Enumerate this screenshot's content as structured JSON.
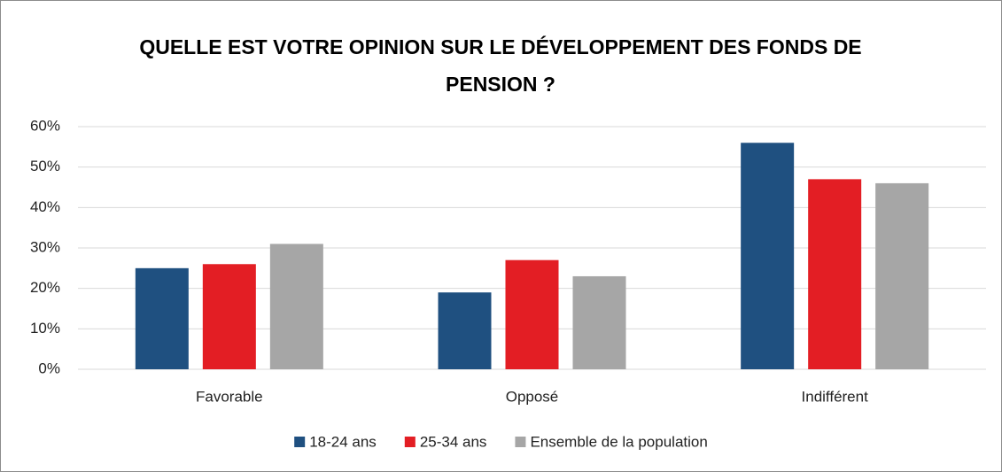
{
  "chart_data": {
    "type": "bar",
    "title": "QUELLE EST VOTRE OPINION SUR LE DÉVELOPPEMENT DES FONDS DE PENSION ?",
    "categories": [
      "Favorable",
      "Opposé",
      "Indifférent"
    ],
    "series": [
      {
        "name": "18-24 ans",
        "color": "#1f5080",
        "values": [
          25,
          19,
          56
        ]
      },
      {
        "name": "25-34 ans",
        "color": "#e31e24",
        "values": [
          26,
          27,
          47
        ]
      },
      {
        "name": "Ensemble de la population",
        "color": "#a6a6a6",
        "values": [
          31,
          23,
          46
        ]
      }
    ],
    "ylim": [
      0,
      60
    ],
    "yticks": [
      {
        "value": 0,
        "label": "0%"
      },
      {
        "value": 10,
        "label": "10%"
      },
      {
        "value": 20,
        "label": "20%"
      },
      {
        "value": 30,
        "label": "30%"
      },
      {
        "value": 40,
        "label": "40%"
      },
      {
        "value": 50,
        "label": "50%"
      },
      {
        "value": 60,
        "label": "60%"
      }
    ],
    "grid": true,
    "legend": "bottom"
  }
}
